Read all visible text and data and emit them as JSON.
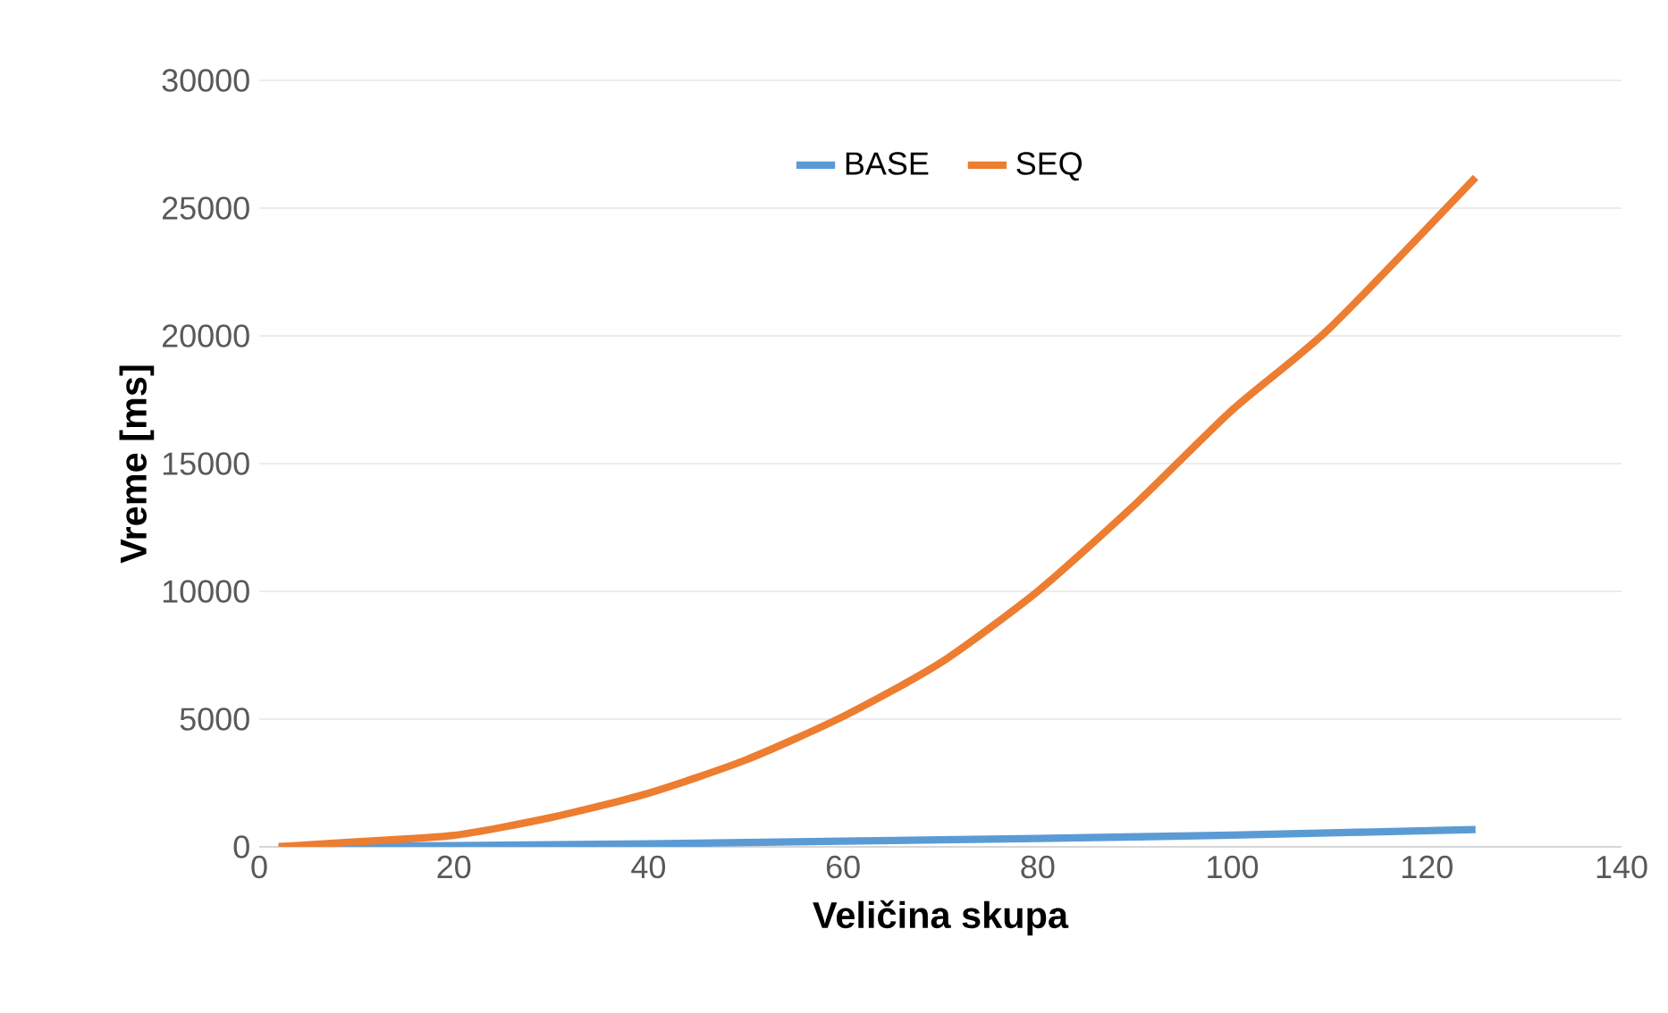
{
  "chart_data": {
    "type": "line",
    "xlabel": "Veličina skupa",
    "ylabel": "Vreme [ms]",
    "xlim": [
      0,
      140
    ],
    "ylim": [
      0,
      30000
    ],
    "xticks": [
      0,
      20,
      40,
      60,
      80,
      100,
      120,
      140
    ],
    "yticks": [
      0,
      5000,
      10000,
      15000,
      20000,
      25000,
      30000
    ],
    "grid": "y",
    "legend": "top",
    "series": [
      {
        "name": "BASE",
        "color": "#5b9bd5",
        "x": [
          2,
          20,
          40,
          60,
          80,
          100,
          125
        ],
        "values": [
          0,
          50,
          120,
          220,
          330,
          460,
          680
        ]
      },
      {
        "name": "SEQ",
        "color": "#ed7d31",
        "x": [
          2,
          10,
          20,
          30,
          40,
          50,
          60,
          70,
          80,
          90,
          100,
          110,
          125
        ],
        "values": [
          0,
          200,
          450,
          1150,
          2100,
          3400,
          5100,
          7200,
          10000,
          13400,
          17100,
          20300,
          26200
        ]
      }
    ]
  }
}
